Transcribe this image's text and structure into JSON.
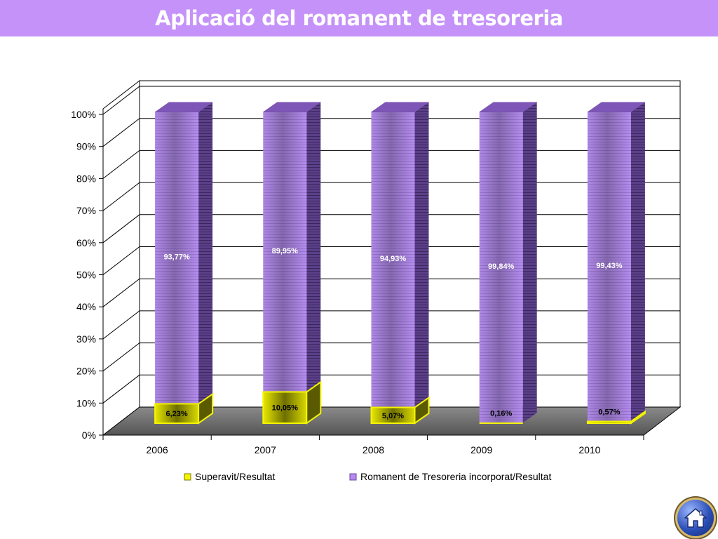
{
  "header": {
    "title": "Aplicació del romanent de tresoreria"
  },
  "colors": {
    "banner": "#c592fa",
    "purple": "#b88af0",
    "yellow": "#f4f400"
  },
  "chart_data": {
    "type": "bar",
    "stacked": true,
    "three_d": true,
    "categories": [
      "2006",
      "2007",
      "2008",
      "2009",
      "2010"
    ],
    "series": [
      {
        "name": "Superavit/Resultat",
        "values": [
          6.23,
          10.05,
          5.07,
          0.16,
          0.57
        ],
        "labels": [
          "6,23%",
          "10,05%",
          "5,07%",
          "0,16%",
          "0,57%"
        ],
        "color": "#f4f400"
      },
      {
        "name": "Romanent de Tresoreria incorporat/Resultat",
        "values": [
          93.77,
          89.95,
          94.93,
          99.84,
          99.43
        ],
        "labels": [
          "93,77%",
          "89,95%",
          "94,93%",
          "99,84%",
          "99,43%"
        ],
        "color": "#b88af0"
      }
    ],
    "y_ticks": [
      "0%",
      "10%",
      "20%",
      "30%",
      "40%",
      "50%",
      "60%",
      "70%",
      "80%",
      "90%",
      "100%"
    ],
    "ylim": [
      0,
      100
    ],
    "grid": true,
    "legend": "bottom"
  },
  "nav": {
    "home_icon": "home-icon"
  }
}
